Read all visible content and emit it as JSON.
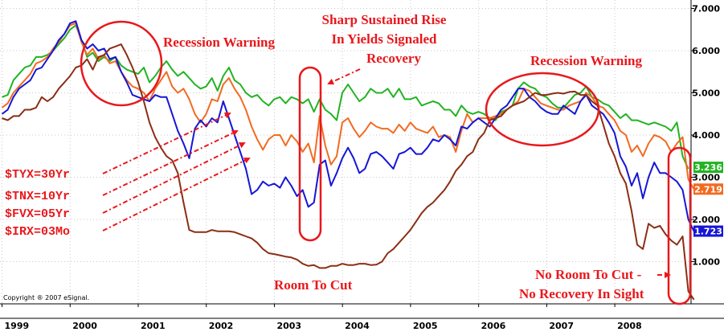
{
  "chart_data": {
    "type": "line",
    "title": "",
    "xlabel": "",
    "ylabel": "",
    "x_start": 1999.0,
    "x_step": 0.0833,
    "xlim": [
      1998.97,
      2009.12
    ],
    "ylim": [
      0.0,
      7.2
    ],
    "x_ticks": [
      "1999",
      "2000",
      "2001",
      "2002",
      "2003",
      "2004",
      "2005",
      "2006",
      "2007",
      "2008"
    ],
    "y_ticks": [
      "7.000",
      "6.000",
      "5.000",
      "4.000",
      "3.000",
      "2.000",
      "1.000"
    ],
    "series": [
      {
        "name": "$TYX=30Yr",
        "color": "#22b322",
        "values": [
          4.9,
          4.95,
          5.3,
          5.45,
          5.6,
          5.65,
          5.85,
          5.85,
          5.9,
          6.0,
          6.15,
          6.3,
          6.5,
          6.6,
          6.25,
          5.85,
          5.95,
          5.75,
          5.85,
          5.75,
          5.85,
          5.65,
          5.55,
          5.5,
          5.45,
          5.6,
          5.25,
          5.4,
          5.6,
          5.75,
          5.55,
          5.4,
          5.5,
          5.35,
          5.2,
          5.1,
          5.15,
          5.35,
          5.05,
          5.4,
          5.6,
          5.3,
          5.2,
          5.0,
          4.9,
          4.95,
          4.8,
          4.7,
          4.85,
          4.9,
          4.75,
          4.9,
          4.85,
          4.75,
          4.85,
          4.55,
          4.85,
          4.6,
          4.5,
          4.35,
          5.0,
          5.2,
          5.0,
          4.8,
          4.9,
          5.1,
          5.0,
          5.0,
          5.1,
          4.9,
          5.1,
          4.85,
          4.85,
          4.9,
          4.7,
          4.75,
          4.8,
          4.75,
          4.6,
          4.6,
          4.45,
          4.7,
          4.55,
          4.5,
          4.55,
          4.5,
          4.4,
          4.35,
          4.55,
          4.6,
          4.7,
          5.1,
          5.25,
          5.15,
          5.1,
          4.95,
          4.9,
          4.75,
          4.65,
          4.65,
          4.8,
          4.95,
          5.0,
          5.15,
          4.9,
          4.85,
          4.75,
          4.7,
          4.55,
          4.4,
          4.5,
          4.35,
          4.35,
          4.3,
          4.25,
          4.3,
          4.25,
          4.2,
          4.1,
          4.3,
          3.5,
          3.2
        ]
      },
      {
        "name": "$TNX=10Yr",
        "color": "#f26b21",
        "values": [
          4.65,
          4.75,
          5.0,
          5.15,
          5.3,
          5.45,
          5.7,
          5.75,
          5.85,
          6.05,
          6.2,
          6.4,
          6.6,
          6.65,
          6.2,
          5.9,
          6.05,
          5.8,
          5.9,
          5.7,
          5.75,
          5.5,
          5.3,
          5.15,
          5.1,
          5.0,
          4.8,
          5.1,
          5.3,
          5.5,
          5.15,
          5.0,
          5.1,
          4.85,
          4.5,
          4.3,
          4.5,
          4.85,
          4.8,
          5.2,
          5.35,
          5.1,
          4.9,
          4.6,
          4.2,
          3.9,
          3.65,
          3.9,
          4.0,
          4.0,
          3.75,
          4.0,
          3.85,
          3.6,
          3.8,
          3.35,
          4.45,
          3.75,
          3.3,
          3.5,
          4.3,
          4.4,
          4.15,
          3.95,
          4.1,
          4.3,
          4.2,
          4.15,
          4.15,
          4.05,
          4.25,
          4.1,
          4.3,
          4.15,
          4.1,
          4.05,
          4.2,
          3.95,
          4.0,
          3.95,
          3.6,
          4.1,
          4.5,
          4.3,
          4.4,
          4.4,
          4.4,
          4.45,
          4.5,
          4.6,
          4.7,
          4.8,
          5.1,
          5.05,
          4.9,
          4.75,
          4.7,
          4.65,
          4.6,
          4.6,
          4.7,
          4.75,
          4.8,
          5.0,
          4.9,
          4.7,
          4.65,
          4.5,
          4.35,
          4.1,
          4.0,
          3.6,
          3.75,
          3.5,
          3.8,
          4.0,
          3.95,
          3.85,
          3.6,
          3.8,
          3.95,
          2.95,
          2.72
        ]
      },
      {
        "name": "$FVX=05Yr",
        "color": "#1616d6",
        "values": [
          4.5,
          4.6,
          4.9,
          5.1,
          5.2,
          5.3,
          5.55,
          5.6,
          5.8,
          6.0,
          6.25,
          6.4,
          6.65,
          6.7,
          6.25,
          6.05,
          6.15,
          6.0,
          6.05,
          5.8,
          5.85,
          5.5,
          5.25,
          4.95,
          4.9,
          4.85,
          4.8,
          4.95,
          4.9,
          4.9,
          4.5,
          4.1,
          3.8,
          3.45,
          4.15,
          4.35,
          4.2,
          4.4,
          4.3,
          4.8,
          4.4,
          4.0,
          3.6,
          3.2,
          2.6,
          2.7,
          2.9,
          2.8,
          2.85,
          2.75,
          3.0,
          2.8,
          2.55,
          2.7,
          2.3,
          2.4,
          3.3,
          3.4,
          2.8,
          3.1,
          3.45,
          3.7,
          3.45,
          3.1,
          3.2,
          3.55,
          3.6,
          3.5,
          3.35,
          3.2,
          3.55,
          3.6,
          3.7,
          3.55,
          3.55,
          3.7,
          3.9,
          3.85,
          4.0,
          3.9,
          3.75,
          4.2,
          4.15,
          4.3,
          4.4,
          4.3,
          4.2,
          4.4,
          4.6,
          4.7,
          4.9,
          5.1,
          5.1,
          4.9,
          4.8,
          4.65,
          4.55,
          4.5,
          4.5,
          4.7,
          4.6,
          4.5,
          4.8,
          4.95,
          4.7,
          4.6,
          4.5,
          4.3,
          4.05,
          3.5,
          3.25,
          2.8,
          3.1,
          2.5,
          3.0,
          3.35,
          3.1,
          3.1,
          3.0,
          2.9,
          2.7,
          2.0,
          1.72
        ]
      },
      {
        "name": "$IRX=03Mo",
        "color": "#8b2e14",
        "values": [
          4.4,
          4.35,
          4.45,
          4.45,
          4.6,
          4.6,
          4.65,
          4.9,
          4.8,
          4.9,
          5.1,
          5.25,
          5.4,
          5.6,
          5.65,
          5.8,
          5.55,
          5.85,
          5.9,
          6.05,
          6.1,
          6.15,
          5.9,
          5.6,
          5.25,
          4.8,
          4.3,
          3.95,
          3.7,
          3.5,
          3.4,
          3.1,
          2.4,
          1.75,
          1.7,
          1.7,
          1.7,
          1.75,
          1.72,
          1.72,
          1.72,
          1.7,
          1.65,
          1.6,
          1.55,
          1.45,
          1.3,
          1.2,
          1.18,
          1.15,
          1.12,
          1.1,
          1.05,
          0.95,
          0.9,
          0.92,
          0.85,
          0.85,
          0.9,
          0.9,
          0.95,
          0.92,
          0.92,
          0.95,
          0.95,
          0.92,
          0.93,
          1.0,
          1.2,
          1.3,
          1.45,
          1.6,
          1.75,
          1.95,
          2.15,
          2.3,
          2.4,
          2.55,
          2.7,
          2.9,
          3.15,
          3.3,
          3.5,
          3.6,
          3.9,
          4.05,
          4.35,
          4.4,
          4.45,
          4.6,
          4.7,
          4.75,
          4.8,
          4.9,
          5.0,
          4.95,
          4.95,
          4.98,
          5.0,
          4.98,
          5.02,
          5.03,
          4.95,
          4.95,
          4.8,
          4.7,
          4.25,
          3.8,
          3.5,
          3.1,
          2.85,
          2.2,
          1.4,
          1.3,
          1.9,
          1.8,
          1.85,
          1.65,
          1.5,
          1.4,
          1.6,
          0.3,
          0.1
        ]
      }
    ],
    "badges": [
      {
        "label": "3.236",
        "series": "$TYX=30Yr",
        "value": 3.236,
        "color": "#22b322"
      },
      {
        "label": "2.719",
        "series": "$TNX=10Yr",
        "value": 2.719,
        "color": "#f26b21"
      },
      {
        "label": "1.723",
        "series": "$FVX=05Yr",
        "value": 1.723,
        "color": "#1616d6"
      }
    ],
    "annotations": [
      "Recession Warning",
      "Sharp Sustained Rise",
      "In Yields Signaled",
      "Recovery",
      "Recession Warning",
      "Room To Cut",
      "No Room To Cut -",
      "No Recovery In Sight"
    ],
    "legend": [
      "$TYX=30Yr",
      "$TNX=10Yr",
      "$FVX=05Yr",
      "$IRX=03Mo"
    ],
    "copyright": "Copyright ® 2007 eSignal."
  }
}
